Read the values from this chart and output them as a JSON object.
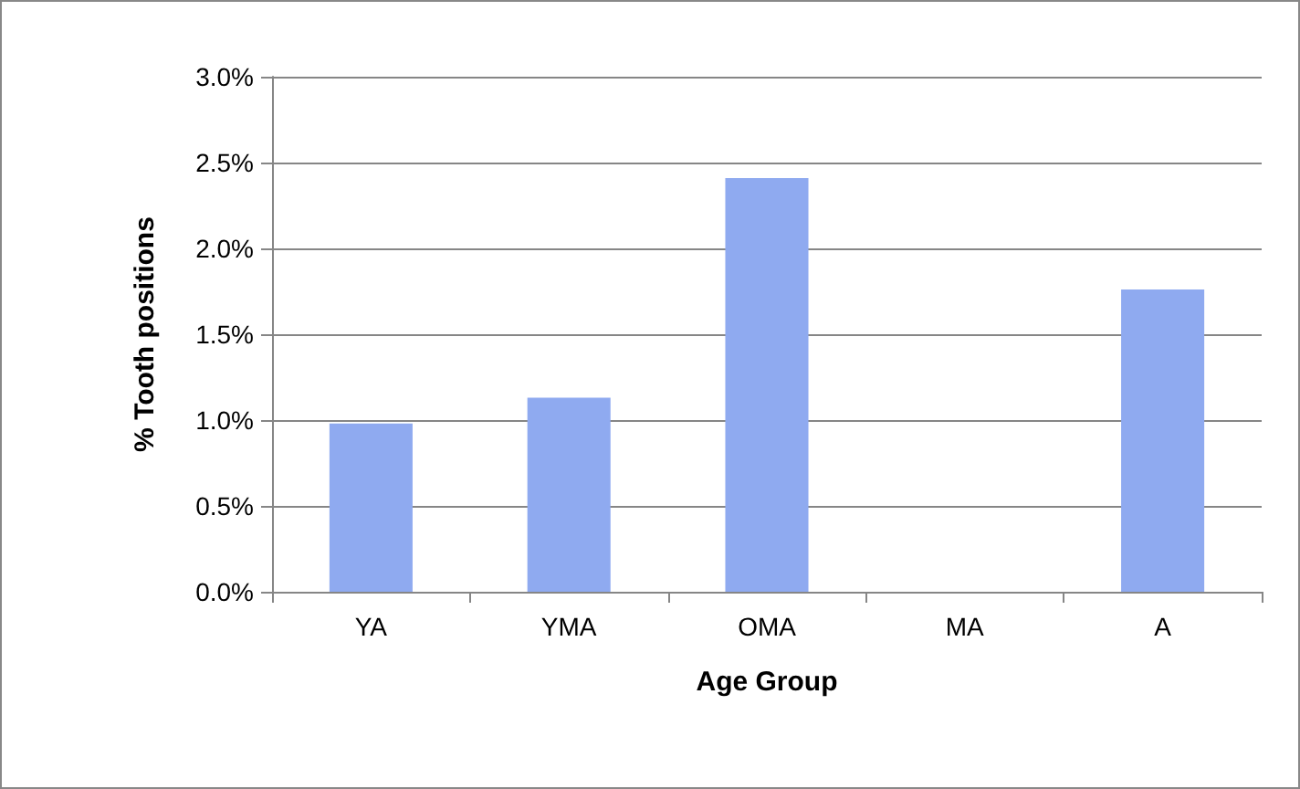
{
  "chart_data": {
    "type": "bar",
    "xlabel": "Age Group",
    "ylabel": "% Tooth positions",
    "categories": [
      "YA",
      "YMA",
      "OMA",
      "MA",
      "A"
    ],
    "values": [
      0.98,
      1.13,
      2.41,
      0,
      1.76
    ],
    "color": "#8faaf0",
    "ylim": [
      0,
      3
    ],
    "yticks": [
      {
        "value": 0,
        "label": "0.0%"
      },
      {
        "value": 0.5,
        "label": "0.5%"
      },
      {
        "value": 1,
        "label": "1.0%"
      },
      {
        "value": 1.5,
        "label": "1.5%"
      },
      {
        "value": 2,
        "label": "2.0%"
      },
      {
        "value": 2.5,
        "label": "2.5%"
      },
      {
        "value": 3,
        "label": "3.0%"
      }
    ],
    "grid": "y"
  }
}
